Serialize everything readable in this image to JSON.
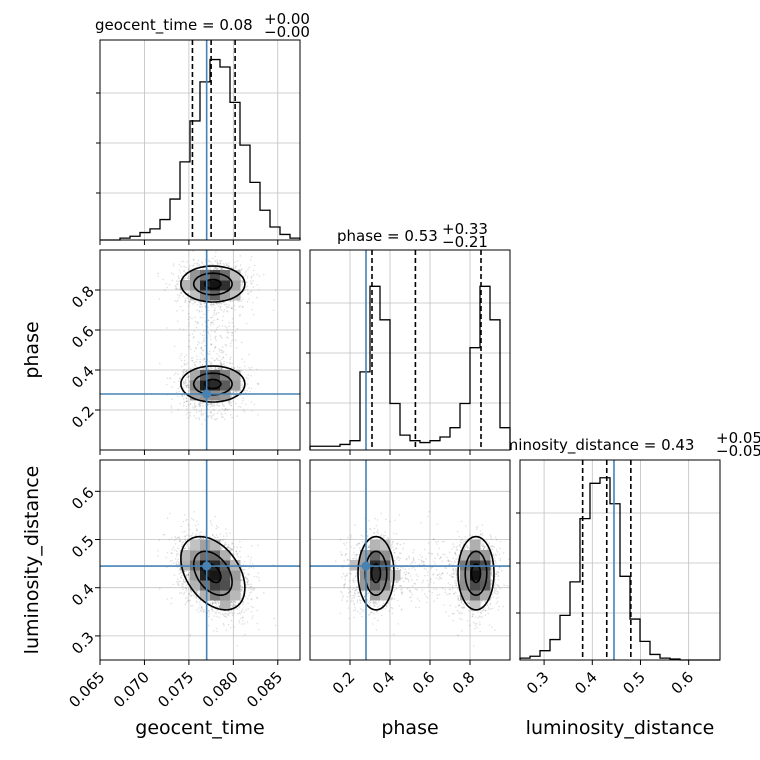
{
  "chart_data": {
    "type": "corner",
    "parameters": [
      "geocent_time",
      "phase",
      "luminosity_distance"
    ],
    "titles": {
      "geocent_time": {
        "name": "geocent_time",
        "median": "0.08",
        "plus": "+0.00",
        "minus": "−0.00"
      },
      "phase": {
        "name": "phase",
        "median": "0.53",
        "plus": "+0.33",
        "minus": "−0.21"
      },
      "luminosity_distance": {
        "name": "luminosity_distance",
        "median": "0.43",
        "plus": "+0.05",
        "minus": "−0.05"
      }
    },
    "ranges": {
      "geocent_time": [
        0.065,
        0.0875
      ],
      "phase": [
        0.0,
        1.0
      ],
      "luminosity_distance": [
        0.25,
        0.665
      ]
    },
    "ticks": {
      "geocent_time": {
        "values": [
          0.065,
          0.07,
          0.075,
          0.08,
          0.085
        ],
        "labels": [
          "0.065",
          "0.070",
          "0.075",
          "0.080",
          "0.085"
        ]
      },
      "phase": {
        "values": [
          0.2,
          0.4,
          0.6,
          0.8
        ],
        "labels": [
          "0.2",
          "0.4",
          "0.6",
          "0.8"
        ]
      },
      "luminosity_distance": {
        "values": [
          0.3,
          0.4,
          0.5,
          0.6
        ],
        "labels": [
          "0.3",
          "0.4",
          "0.5",
          "0.6"
        ]
      }
    },
    "truths": {
      "geocent_time": 0.077,
      "phase": 0.28,
      "luminosity_distance": 0.445
    },
    "quantiles": {
      "geocent_time": [
        0.0754,
        0.0775,
        0.0802
      ],
      "phase": [
        0.31,
        0.527,
        0.855
      ],
      "luminosity_distance": [
        0.38,
        0.43,
        0.48
      ]
    },
    "histograms": {
      "geocent_time": [
        0.0,
        0.0,
        0.01,
        0.02,
        0.04,
        0.06,
        0.11,
        0.22,
        0.42,
        0.64,
        0.85,
        0.97,
        0.93,
        0.74,
        0.51,
        0.31,
        0.16,
        0.07,
        0.03,
        0.01
      ],
      "phase": [
        0.02,
        0.02,
        0.02,
        0.03,
        0.05,
        0.42,
        0.88,
        0.7,
        0.25,
        0.08,
        0.05,
        0.04,
        0.05,
        0.07,
        0.12,
        0.25,
        0.55,
        0.88,
        0.7,
        0.12
      ],
      "luminosity_distance": [
        0.01,
        0.02,
        0.05,
        0.11,
        0.24,
        0.42,
        0.76,
        0.95,
        0.98,
        0.84,
        0.45,
        0.22,
        0.1,
        0.03,
        0.01,
        0.005,
        0.0,
        0.0,
        0.0,
        0.0
      ]
    },
    "modes": {
      "geocent_time": {
        "mean": 0.0777,
        "sd": 0.0018
      },
      "phase": [
        {
          "mean": 0.33,
          "sd": 0.045,
          "weight": 0.5
        },
        {
          "mean": 0.83,
          "sd": 0.045,
          "weight": 0.5
        }
      ],
      "luminosity_distance": {
        "mean": 0.43,
        "sd": 0.038,
        "tilt_vs_time": -0.4
      }
    },
    "axis_labels": {
      "x": [
        "geocent_time",
        "phase",
        "luminosity_distance"
      ],
      "y": [
        "phase",
        "luminosity_distance"
      ]
    },
    "colors": {
      "truth": "#4682b4",
      "hist": "#000000",
      "grid": "#c0c0c0",
      "scatter": "#000000"
    },
    "grid": true
  }
}
